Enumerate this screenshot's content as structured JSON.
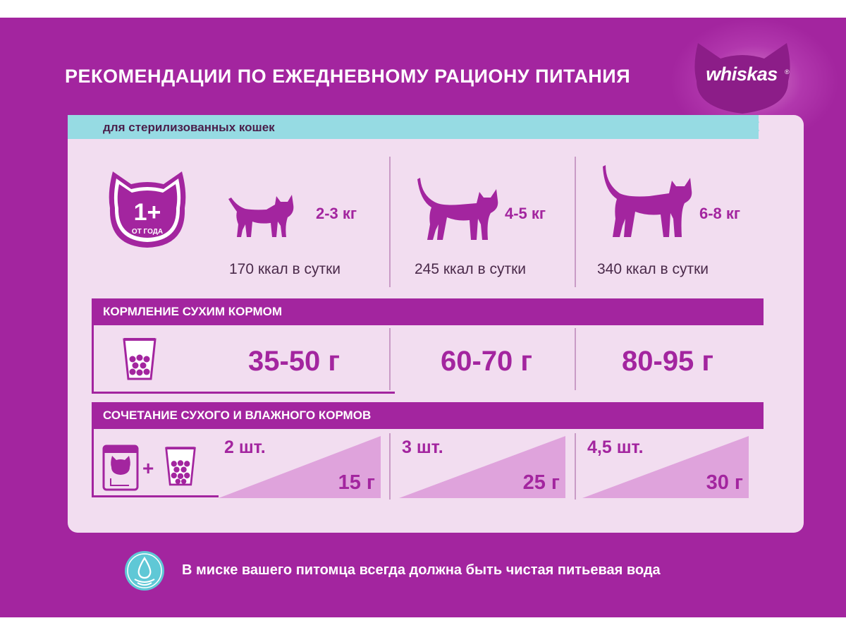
{
  "title": "РЕКОМЕНДАЦИИ ПО ЕЖЕДНЕВНОМУ РАЦИОНУ ПИТАНИЯ",
  "brand": {
    "name": "whiskas",
    "trademark": "®"
  },
  "audience_label": "для стерилизованных кошек",
  "age_badge": {
    "value": "1+",
    "caption": "ОТ ГОДА"
  },
  "weight_groups": [
    {
      "weight": "2-3 кг",
      "kcal": "170 ккал в сутки",
      "icon": "small-cat-icon"
    },
    {
      "weight": "4-5 кг",
      "kcal": "245 ккал в сутки",
      "icon": "medium-cat-icon"
    },
    {
      "weight": "6-8 кг",
      "kcal": "340 ккал в сутки",
      "icon": "large-cat-icon"
    }
  ],
  "dry_feeding": {
    "title": "КОРМЛЕНИЕ СУХИМ КОРМОМ",
    "icon": "dry-food-cup-icon",
    "values": [
      "35-50 г",
      "60-70 г",
      "80-95 г"
    ]
  },
  "combo_feeding": {
    "title": "СОЧЕТАНИЕ СУХОГО И ВЛАЖНОГО КОРМОВ",
    "plus": "+",
    "icons": [
      "wet-food-pouch-icon",
      "dry-food-cup-icon"
    ],
    "items": [
      {
        "pouches": "2 шт.",
        "dry": "15 г"
      },
      {
        "pouches": "3 шт.",
        "dry": "25 г"
      },
      {
        "pouches": "4,5 шт.",
        "dry": "30 г"
      }
    ]
  },
  "water_note": "В миске вашего питомца всегда должна быть чистая питьевая вода",
  "colors": {
    "background": "#a3259f",
    "panel": "#f2ddf0",
    "accent_teal": "#96dbe3",
    "triangle": "#dfa3dc",
    "text_dark": "#4a2a4a"
  }
}
